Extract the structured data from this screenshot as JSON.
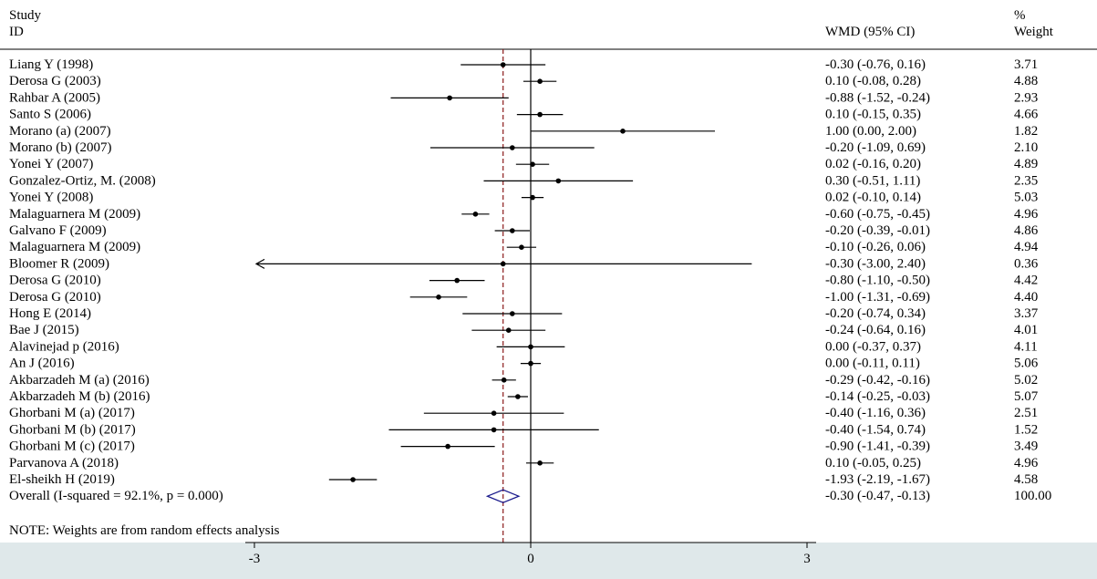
{
  "header": {
    "study_line1": "Study",
    "study_line2": "ID",
    "effect_label": "WMD (95% CI)",
    "weight_line1": "%",
    "weight_line2": "Weight"
  },
  "note": "NOTE: Weights are from random effects analysis",
  "chart_data": {
    "type": "forest",
    "measure": "WMD (95% CI)",
    "x_ticks": [
      -3,
      0,
      3
    ],
    "x_tick_labels": [
      "-3",
      "0",
      "3"
    ],
    "reference_line": 0,
    "overall_line": -0.3,
    "studies": [
      {
        "label": "Liang Y (1998)",
        "est": -0.3,
        "lo": -0.76,
        "hi": 0.16,
        "ci_text": "-0.30 (-0.76, 0.16)",
        "weight": "3.71"
      },
      {
        "label": "Derosa G (2003)",
        "est": 0.1,
        "lo": -0.08,
        "hi": 0.28,
        "ci_text": "0.10 (-0.08, 0.28)",
        "weight": "4.88"
      },
      {
        "label": "Rahbar A (2005)",
        "est": -0.88,
        "lo": -1.52,
        "hi": -0.24,
        "ci_text": "-0.88 (-1.52, -0.24)",
        "weight": "2.93"
      },
      {
        "label": "Santo S (2006)",
        "est": 0.1,
        "lo": -0.15,
        "hi": 0.35,
        "ci_text": "0.10 (-0.15, 0.35)",
        "weight": "4.66"
      },
      {
        "label": "Morano (a) (2007)",
        "est": 1.0,
        "lo": 0.0,
        "hi": 2.0,
        "ci_text": "1.00 (0.00, 2.00)",
        "weight": "1.82"
      },
      {
        "label": "Morano (b) (2007)",
        "est": -0.2,
        "lo": -1.09,
        "hi": 0.69,
        "ci_text": "-0.20 (-1.09, 0.69)",
        "weight": "2.10"
      },
      {
        "label": "Yonei Y (2007)",
        "est": 0.02,
        "lo": -0.16,
        "hi": 0.2,
        "ci_text": "0.02 (-0.16, 0.20)",
        "weight": "4.89"
      },
      {
        "label": "Gonzalez-Ortiz, M. (2008)",
        "est": 0.3,
        "lo": -0.51,
        "hi": 1.11,
        "ci_text": "0.30 (-0.51, 1.11)",
        "weight": "2.35"
      },
      {
        "label": "Yonei Y (2008)",
        "est": 0.02,
        "lo": -0.1,
        "hi": 0.14,
        "ci_text": "0.02 (-0.10, 0.14)",
        "weight": "5.03"
      },
      {
        "label": "Malaguarnera M (2009)",
        "est": -0.6,
        "lo": -0.75,
        "hi": -0.45,
        "ci_text": "-0.60 (-0.75, -0.45)",
        "weight": "4.96"
      },
      {
        "label": "Galvano F (2009)",
        "est": -0.2,
        "lo": -0.39,
        "hi": -0.01,
        "ci_text": "-0.20 (-0.39, -0.01)",
        "weight": "4.86"
      },
      {
        "label": "Malaguarnera M (2009)",
        "est": -0.1,
        "lo": -0.26,
        "hi": 0.06,
        "ci_text": "-0.10 (-0.26, 0.06)",
        "weight": "4.94"
      },
      {
        "label": "Bloomer R (2009)",
        "est": -0.3,
        "lo": -3.0,
        "hi": 2.4,
        "ci_text": "-0.30 (-3.00, 2.40)",
        "weight": "0.36",
        "arrow_left": true
      },
      {
        "label": "Derosa G (2010)",
        "est": -0.8,
        "lo": -1.1,
        "hi": -0.5,
        "ci_text": "-0.80 (-1.10, -0.50)",
        "weight": "4.42"
      },
      {
        "label": "Derosa G (2010)",
        "est": -1.0,
        "lo": -1.31,
        "hi": -0.69,
        "ci_text": "-1.00 (-1.31, -0.69)",
        "weight": "4.40"
      },
      {
        "label": "Hong E (2014)",
        "est": -0.2,
        "lo": -0.74,
        "hi": 0.34,
        "ci_text": "-0.20 (-0.74, 0.34)",
        "weight": "3.37"
      },
      {
        "label": "Bae J (2015)",
        "est": -0.24,
        "lo": -0.64,
        "hi": 0.16,
        "ci_text": "-0.24 (-0.64, 0.16)",
        "weight": "4.01"
      },
      {
        "label": "Alavinejad p (2016)",
        "est": 0.0,
        "lo": -0.37,
        "hi": 0.37,
        "ci_text": "0.00 (-0.37, 0.37)",
        "weight": "4.11"
      },
      {
        "label": "An J (2016)",
        "est": 0.0,
        "lo": -0.11,
        "hi": 0.11,
        "ci_text": "0.00 (-0.11, 0.11)",
        "weight": "5.06"
      },
      {
        "label": "Akbarzadeh M (a) (2016)",
        "est": -0.29,
        "lo": -0.42,
        "hi": -0.16,
        "ci_text": "-0.29 (-0.42, -0.16)",
        "weight": "5.02"
      },
      {
        "label": "Akbarzadeh M (b) (2016)",
        "est": -0.14,
        "lo": -0.25,
        "hi": -0.03,
        "ci_text": "-0.14 (-0.25, -0.03)",
        "weight": "5.07"
      },
      {
        "label": "Ghorbani M (a) (2017)",
        "est": -0.4,
        "lo": -1.16,
        "hi": 0.36,
        "ci_text": "-0.40 (-1.16, 0.36)",
        "weight": "2.51"
      },
      {
        "label": "Ghorbani M (b) (2017)",
        "est": -0.4,
        "lo": -1.54,
        "hi": 0.74,
        "ci_text": "-0.40 (-1.54, 0.74)",
        "weight": "1.52"
      },
      {
        "label": "Ghorbani M (c) (2017)",
        "est": -0.9,
        "lo": -1.41,
        "hi": -0.39,
        "ci_text": "-0.90 (-1.41, -0.39)",
        "weight": "3.49"
      },
      {
        "label": "Parvanova A (2018)",
        "est": 0.1,
        "lo": -0.05,
        "hi": 0.25,
        "ci_text": "0.10 (-0.05, 0.25)",
        "weight": "4.96"
      },
      {
        "label": "El-sheikh H (2019)",
        "est": -1.93,
        "lo": -2.19,
        "hi": -1.67,
        "ci_text": "-1.93 (-2.19, -1.67)",
        "weight": "4.58"
      }
    ],
    "overall": {
      "label": "Overall  (I-squared = 92.1%, p = 0.000)",
      "est": -0.3,
      "lo": -0.47,
      "hi": -0.13,
      "ci_text": "-0.30 (-0.47, -0.13)",
      "weight": "100.00"
    },
    "colors": {
      "diamond": "#1a1a8c",
      "overall_line": "#8b1a1a",
      "axis_band": "#dfe8ea"
    }
  }
}
